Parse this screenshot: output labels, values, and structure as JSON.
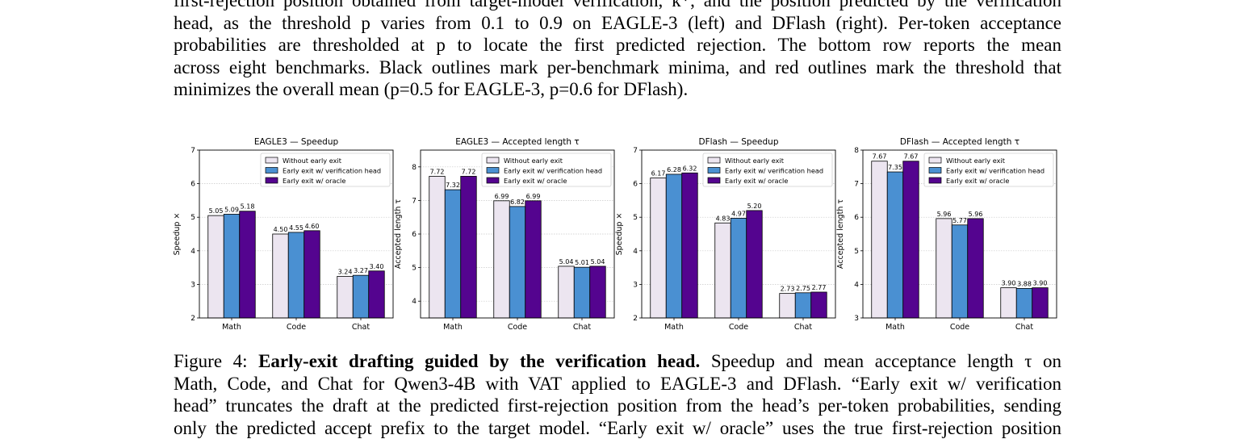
{
  "top_paragraph": {
    "lines": [
      "first-rejection position obtained from target-model verification, k*, and the position predicted by the verification",
      "head, as the threshold p varies from 0.1 to 0.9 on EAGLE-3 (left) and DFlash (right). Per-token acceptance",
      "probabilities are thresholded at p to locate the first predicted rejection. The bottom row reports the mean",
      "across eight benchmarks. Black outlines mark per-benchmark minima, and red outlines mark the threshold that",
      "minimizes the overall mean (p=0.5 for EAGLE-3, p=0.6 for DFlash)."
    ]
  },
  "caption": {
    "figure_label": "Figure 4:",
    "bold_title": "Early-exit drafting guided by the verification head.",
    "line1_rest": "Speedup and mean acceptance length τ on",
    "lines": [
      "Math, Code, and Chat for Qwen3-4B with VAT applied to EAGLE-3 and DFlash. “Early exit w/ verification",
      "head” truncates the draft at the predicted first-rejection position from the head’s per-token probabilities, sending",
      "only the predicted accept prefix to the target model. “Early exit w/ oracle” uses the true first-rejection position"
    ]
  },
  "colors": {
    "without": "#ece5f0",
    "verification": "#4a90d2",
    "oracle": "#54048f"
  },
  "legend": [
    "Without early exit",
    "Early exit w/ verification head",
    "Early exit w/ oracle"
  ],
  "chart_data": [
    {
      "type": "bar",
      "title": "EAGLE3 — Speedup",
      "ylabel": "Speedup ×",
      "categories": [
        "Math",
        "Code",
        "Chat"
      ],
      "ylim": [
        2,
        7
      ],
      "yticks": [
        2,
        3,
        4,
        5,
        6,
        7
      ],
      "grid": true,
      "legend_position": "top-right",
      "series": [
        {
          "name": "Without early exit",
          "values": [
            5.05,
            4.5,
            3.24
          ],
          "labels": [
            "5.05",
            "4.50",
            "3.24"
          ]
        },
        {
          "name": "Early exit w/ verification head",
          "values": [
            5.09,
            4.55,
            3.27
          ],
          "labels": [
            "5.09",
            "4.55",
            "3.27"
          ]
        },
        {
          "name": "Early exit w/ oracle",
          "values": [
            5.18,
            4.6,
            3.4
          ],
          "labels": [
            "5.18",
            "4.60",
            "3.40"
          ]
        }
      ]
    },
    {
      "type": "bar",
      "title": "EAGLE3 — Accepted length τ",
      "ylabel": "Accepted length τ",
      "categories": [
        "Math",
        "Code",
        "Chat"
      ],
      "ylim": [
        3.5,
        8.5
      ],
      "yticks": [
        4,
        5,
        6,
        7,
        8
      ],
      "grid": true,
      "legend_position": "top-right",
      "series": [
        {
          "name": "Without early exit",
          "values": [
            7.72,
            6.99,
            5.04
          ],
          "labels": [
            "7.72",
            "6.99",
            "5.04"
          ]
        },
        {
          "name": "Early exit w/ verification head",
          "values": [
            7.32,
            6.82,
            5.01
          ],
          "labels": [
            "7.32",
            "6.82",
            "5.01"
          ]
        },
        {
          "name": "Early exit w/ oracle",
          "values": [
            7.72,
            6.99,
            5.04
          ],
          "labels": [
            "7.72",
            "6.99",
            "5.04"
          ]
        }
      ]
    },
    {
      "type": "bar",
      "title": "DFlash — Speedup",
      "ylabel": "Speedup ×",
      "categories": [
        "Math",
        "Code",
        "Chat"
      ],
      "ylim": [
        2,
        7
      ],
      "yticks": [
        2,
        3,
        4,
        5,
        6,
        7
      ],
      "grid": true,
      "legend_position": "top-right",
      "series": [
        {
          "name": "Without early exit",
          "values": [
            6.17,
            4.83,
            2.73
          ],
          "labels": [
            "6.17",
            "4.83",
            "2.73"
          ]
        },
        {
          "name": "Early exit w/ verification head",
          "values": [
            6.28,
            4.97,
            2.75
          ],
          "labels": [
            "6.28",
            "4.97",
            "2.75"
          ]
        },
        {
          "name": "Early exit w/ oracle",
          "values": [
            6.32,
            5.2,
            2.77
          ],
          "labels": [
            "6.32",
            "5.20",
            "2.77"
          ]
        }
      ]
    },
    {
      "type": "bar",
      "title": "DFlash — Accepted length τ",
      "ylabel": "Accepted length τ",
      "categories": [
        "Math",
        "Code",
        "Chat"
      ],
      "ylim": [
        3,
        8
      ],
      "yticks": [
        3,
        4,
        5,
        6,
        7,
        8
      ],
      "grid": true,
      "legend_position": "top-right",
      "series": [
        {
          "name": "Without early exit",
          "values": [
            7.67,
            5.96,
            3.9
          ],
          "labels": [
            "7.67",
            "5.96",
            "3.90"
          ]
        },
        {
          "name": "Early exit w/ verification head",
          "values": [
            7.35,
            5.77,
            3.88
          ],
          "labels": [
            "7.35",
            "5.77",
            "3.88"
          ]
        },
        {
          "name": "Early exit w/ oracle",
          "values": [
            7.67,
            5.96,
            3.9
          ],
          "labels": [
            "7.67",
            "5.96",
            "3.90"
          ]
        }
      ]
    }
  ]
}
